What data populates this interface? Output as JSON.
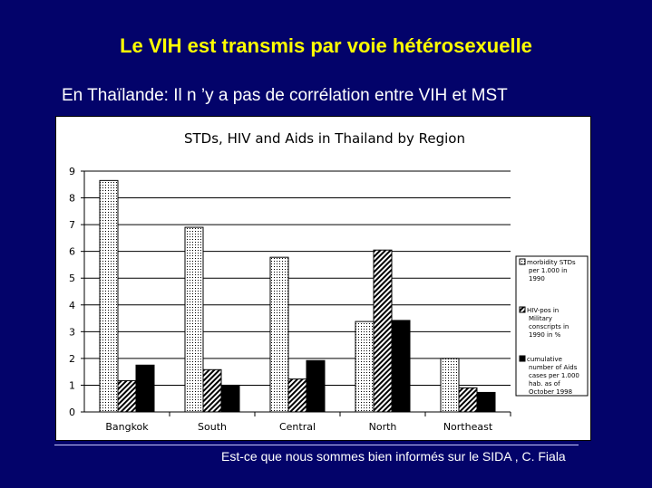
{
  "slide": {
    "title": "Le VIH est transmis par voie hétérosexuelle",
    "subtitle": "En Thaïlande: Il n ’y a pas de corrélation entre VIH et MST",
    "footer": "Est-ce que nous sommes bien informés sur le SIDA , C. Fiala"
  },
  "colors": {
    "background": "#03036a",
    "title": "#ffff00",
    "text": "#ffffff"
  },
  "chart_data": {
    "type": "bar",
    "title": "STDs, HIV and Aids in Thailand by Region",
    "categories": [
      "Bangkok",
      "South",
      "Central",
      "North",
      "Northeast"
    ],
    "series": [
      {
        "name": "morbidity STDs per 1.000 in 1990",
        "pattern": "dotted",
        "values": [
          8.65,
          6.9,
          5.78,
          3.38,
          2.0
        ]
      },
      {
        "name": "HIV-pos in Military conscripts in 1990 in %",
        "pattern": "hatched",
        "values": [
          1.17,
          1.58,
          1.23,
          6.05,
          0.9
        ]
      },
      {
        "name": "cumulative number of Aids cases per 1.000 hab. as of October 1998",
        "pattern": "solid-black",
        "values": [
          1.75,
          1.0,
          1.92,
          3.42,
          0.73
        ]
      }
    ],
    "legend_lines": [
      [
        "morbidity STDs",
        "per 1.000 in",
        "1990"
      ],
      [
        "HIV-pos in",
        "Military",
        "conscripts in",
        "1990 in %"
      ],
      [
        "cumulative",
        "number of Aids",
        "cases per 1.000",
        "hab. as of",
        "October 1998"
      ]
    ],
    "yticks": [
      "0",
      "1",
      "2",
      "3",
      "4",
      "5",
      "6",
      "7",
      "8",
      "9"
    ],
    "ylim": [
      0,
      9
    ],
    "grid": true,
    "legend_position": "right"
  }
}
